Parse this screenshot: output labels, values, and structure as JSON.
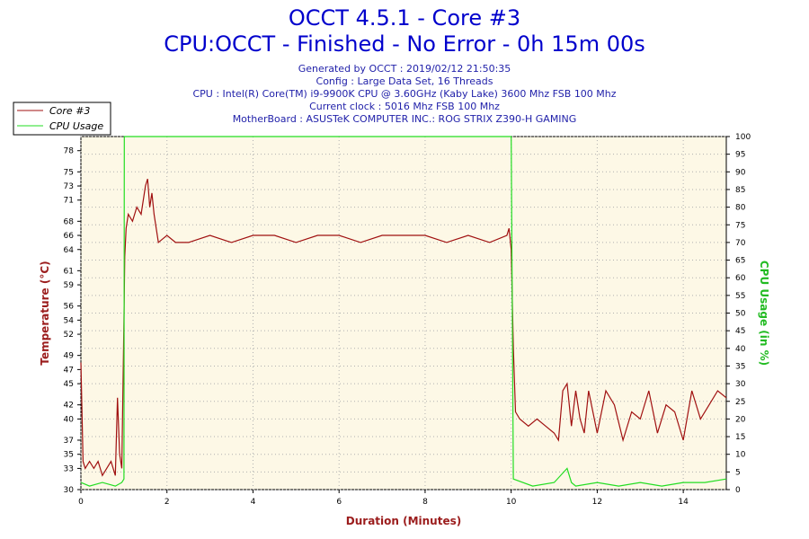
{
  "header": {
    "title": "OCCT 4.5.1 - Core #3",
    "subtitle": "CPU:OCCT - Finished - No Error - 0h 15m 00s",
    "info_lines": [
      "Generated by OCCT : 2019/02/12 21:50:35",
      "Config : Large Data Set, 16 Threads",
      "CPU : Intel(R) Core(TM) i9-9900K CPU @ 3.60GHz (Kaby Lake) 3600 Mhz FSB 100 Mhz",
      "Current clock : 5016 Mhz FSB 100 Mhz",
      "MotherBoard : ASUSTeK COMPUTER INC.: ROG STRIX Z390-H GAMING"
    ]
  },
  "colors": {
    "temperature": "#a01010",
    "usage": "#22dd22",
    "plot_bg": "#fdf8e6",
    "grid": "#b0b0b0",
    "left_axis_label": "#9b1c1c",
    "right_axis_label": "#22bb22",
    "x_axis_label": "#9b1c1c"
  },
  "chart_data": {
    "type": "line",
    "xlabel": "Duration (Minutes)",
    "ylabel": "Temperature (°C)",
    "ylabel_right": "CPU Usage (in %)",
    "xlim": [
      0,
      15
    ],
    "ylim": [
      30,
      80
    ],
    "ylim_right": [
      0,
      100
    ],
    "x_ticks": [
      0,
      2,
      4,
      6,
      8,
      10,
      12,
      14
    ],
    "y_ticks": [
      30,
      33,
      35,
      37,
      40,
      42,
      45,
      47,
      49,
      52,
      54,
      56,
      59,
      61,
      64,
      66,
      68,
      71,
      73,
      75,
      78
    ],
    "y_right_ticks": [
      0,
      5,
      10,
      15,
      20,
      25,
      30,
      35,
      40,
      45,
      50,
      55,
      60,
      65,
      70,
      75,
      80,
      85,
      90,
      95,
      100
    ],
    "grid": true,
    "legend": "top-left",
    "series": [
      {
        "name": "Core #3",
        "axis": "left",
        "x": [
          0,
          0.05,
          0.1,
          0.2,
          0.3,
          0.4,
          0.5,
          0.6,
          0.7,
          0.8,
          0.85,
          0.9,
          0.95,
          1.0,
          1.02,
          1.05,
          1.1,
          1.2,
          1.3,
          1.4,
          1.5,
          1.55,
          1.6,
          1.65,
          1.7,
          1.8,
          2.0,
          2.2,
          2.5,
          3.0,
          3.5,
          4.0,
          4.5,
          5.0,
          5.5,
          6.0,
          6.5,
          7.0,
          7.5,
          8.0,
          8.5,
          9.0,
          9.5,
          9.9,
          9.95,
          10.0,
          10.05,
          10.1,
          10.2,
          10.4,
          10.6,
          10.8,
          11.0,
          11.1,
          11.2,
          11.3,
          11.4,
          11.5,
          11.6,
          11.7,
          11.8,
          12.0,
          12.2,
          12.4,
          12.6,
          12.8,
          13.0,
          13.2,
          13.4,
          13.6,
          13.8,
          14.0,
          14.2,
          14.4,
          14.6,
          14.8,
          15.0
        ],
        "values": [
          48,
          34,
          33,
          34,
          33,
          34,
          32,
          33,
          34,
          32,
          43,
          35,
          33,
          54,
          63,
          67,
          69,
          68,
          70,
          69,
          73,
          74,
          70,
          72,
          69,
          65,
          66,
          65,
          65,
          66,
          65,
          66,
          66,
          65,
          66,
          66,
          65,
          66,
          66,
          66,
          65,
          66,
          65,
          66,
          67,
          64,
          50,
          41,
          40,
          39,
          40,
          39,
          38,
          37,
          44,
          45,
          39,
          44,
          40,
          38,
          44,
          38,
          44,
          42,
          37,
          41,
          40,
          44,
          38,
          42,
          41,
          37,
          44,
          40,
          42,
          44,
          43
        ]
      },
      {
        "name": "CPU Usage",
        "axis": "right",
        "x": [
          0,
          0.2,
          0.5,
          0.8,
          0.95,
          1.0,
          1.01,
          2.0,
          4.0,
          6.0,
          8.0,
          9.9,
          9.95,
          10.0,
          10.05,
          10.5,
          11.0,
          11.3,
          11.4,
          11.5,
          12.0,
          12.5,
          13.0,
          13.5,
          14.0,
          14.5,
          15.0
        ],
        "values": [
          2,
          1,
          2,
          1,
          2,
          3,
          100,
          100,
          100,
          100,
          100,
          100,
          100,
          100,
          3,
          1,
          2,
          6,
          2,
          1,
          2,
          1,
          2,
          1,
          2,
          2,
          3
        ]
      }
    ]
  }
}
